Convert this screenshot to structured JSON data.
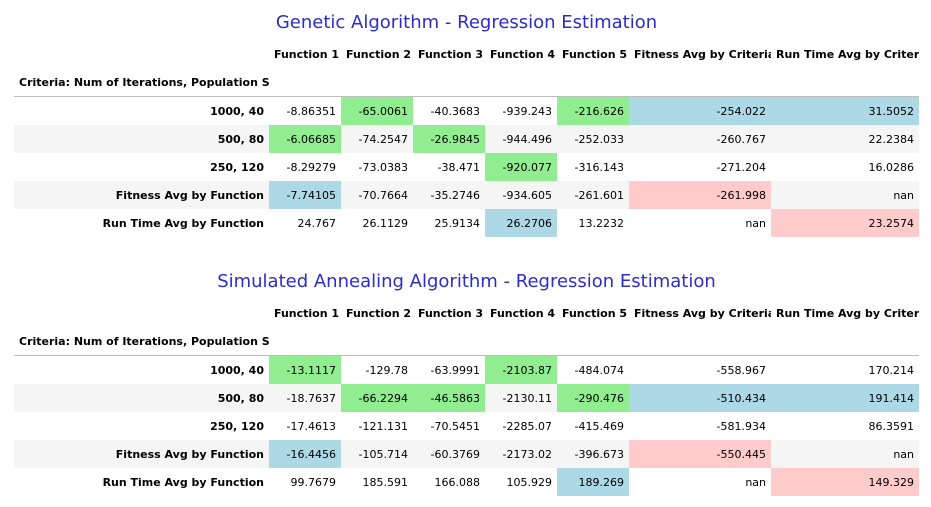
{
  "columns": [
    "Function 1",
    "Function 2",
    "Function 3",
    "Function 4",
    "Function 5",
    "Fitness Avg by Criteria",
    "Run Time Avg by Criteria"
  ],
  "index_label": "Criteria: Num of Iterations, Population Size",
  "colors": {
    "title": "#2c2cc8",
    "green": "#90ee90",
    "blue": "#add8e6",
    "pink": "#ffcccb",
    "stripe": "#f5f5f5"
  },
  "tables": [
    {
      "title": "Genetic Algorithm - Regression Estimation",
      "rows": [
        {
          "label": "1000, 40",
          "values": [
            "-8.86351",
            "-65.0061",
            "-40.3683",
            "-939.243",
            "-216.626",
            "-254.022",
            "31.5052"
          ]
        },
        {
          "label": "500, 80",
          "values": [
            "-6.06685",
            "-74.2547",
            "-26.9845",
            "-944.496",
            "-252.033",
            "-260.767",
            "22.2384"
          ]
        },
        {
          "label": "250, 120",
          "values": [
            "-8.29279",
            "-73.0383",
            "-38.471",
            "-920.077",
            "-316.143",
            "-271.204",
            "16.0286"
          ]
        },
        {
          "label": "Fitness Avg by Function",
          "values": [
            "-7.74105",
            "-70.7664",
            "-35.2746",
            "-934.605",
            "-261.601",
            "-261.998",
            "nan"
          ]
        },
        {
          "label": "Run Time Avg by Function",
          "values": [
            "24.767",
            "26.1129",
            "25.9134",
            "26.2706",
            "13.2232",
            "nan",
            "23.2574"
          ]
        }
      ]
    },
    {
      "title": "Simulated Annealing Algorithm - Regression Estimation",
      "rows": [
        {
          "label": "1000, 40",
          "values": [
            "-13.1117",
            "-129.78",
            "-63.9991",
            "-2103.87",
            "-484.074",
            "-558.967",
            "170.214"
          ]
        },
        {
          "label": "500, 80",
          "values": [
            "-18.7637",
            "-66.2294",
            "-46.5863",
            "-2130.11",
            "-290.476",
            "-510.434",
            "191.414"
          ]
        },
        {
          "label": "250, 120",
          "values": [
            "-17.4613",
            "-121.131",
            "-70.5451",
            "-2285.07",
            "-415.469",
            "-581.934",
            "86.3591"
          ]
        },
        {
          "label": "Fitness Avg by Function",
          "values": [
            "-16.4456",
            "-105.714",
            "-60.3769",
            "-2173.02",
            "-396.673",
            "-550.445",
            "nan"
          ]
        },
        {
          "label": "Run Time Avg by Function",
          "values": [
            "99.7679",
            "185.591",
            "166.088",
            "105.929",
            "189.269",
            "nan",
            "149.329"
          ]
        }
      ]
    }
  ]
}
